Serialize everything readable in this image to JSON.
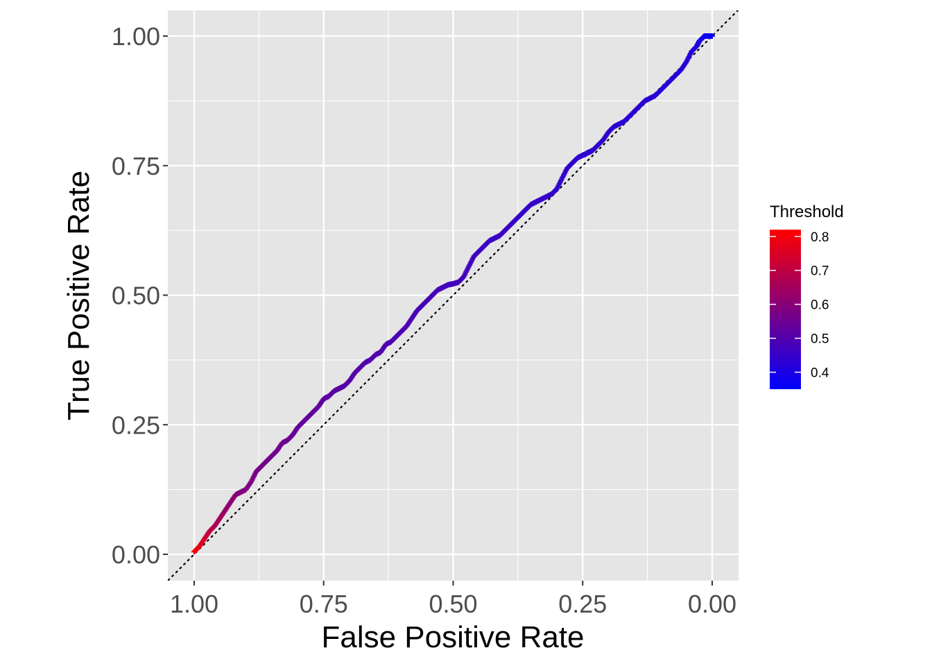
{
  "chart_data": {
    "type": "line",
    "title": "",
    "xlabel": "False Positive Rate",
    "ylabel": "True Positive Rate",
    "x_reversed": true,
    "xlim": [
      1.0,
      0.0
    ],
    "ylim": [
      0.0,
      1.0
    ],
    "x_ticks": [
      "1.00",
      "0.75",
      "0.50",
      "0.25",
      "0.00"
    ],
    "y_ticks": [
      "0.00",
      "0.25",
      "0.50",
      "0.75",
      "1.00"
    ],
    "grid": true,
    "reference_line": "diagonal dotted",
    "legend": {
      "title": "Threshold",
      "placement": "right",
      "labels": [
        "0.8",
        "0.7",
        "0.6",
        "0.5",
        "0.4"
      ],
      "range": [
        0.35,
        0.82
      ],
      "low_color": "#0000ff",
      "high_color": "#ff0000"
    },
    "series": [
      {
        "x": [
          1.0,
          0.99,
          0.98,
          0.97,
          0.96,
          0.95,
          0.94,
          0.93,
          0.92,
          0.91,
          0.9,
          0.89,
          0.88,
          0.87,
          0.86,
          0.85,
          0.84,
          0.83,
          0.82,
          0.81,
          0.8,
          0.79,
          0.78,
          0.77,
          0.76,
          0.75,
          0.74,
          0.73,
          0.72,
          0.71,
          0.7,
          0.69,
          0.68,
          0.67,
          0.66,
          0.65,
          0.64,
          0.63,
          0.62,
          0.61,
          0.6,
          0.59,
          0.58,
          0.57,
          0.56,
          0.55,
          0.54,
          0.53,
          0.52,
          0.51,
          0.5,
          0.49,
          0.48,
          0.47,
          0.46,
          0.45,
          0.44,
          0.43,
          0.42,
          0.41,
          0.4,
          0.39,
          0.38,
          0.37,
          0.36,
          0.35,
          0.34,
          0.33,
          0.32,
          0.31,
          0.3,
          0.29,
          0.28,
          0.27,
          0.26,
          0.25,
          0.245,
          0.24,
          0.235,
          0.23,
          0.22,
          0.21,
          0.2,
          0.19,
          0.18,
          0.17,
          0.16,
          0.15,
          0.14,
          0.13,
          0.12,
          0.11,
          0.1,
          0.09,
          0.08,
          0.07,
          0.06,
          0.05,
          0.04,
          0.03,
          0.025,
          0.02,
          0.015,
          0.01,
          0.005,
          0.0
        ],
        "y": [
          0.005,
          0.015,
          0.03,
          0.045,
          0.055,
          0.07,
          0.085,
          0.1,
          0.115,
          0.12,
          0.125,
          0.14,
          0.16,
          0.17,
          0.18,
          0.19,
          0.2,
          0.215,
          0.22,
          0.23,
          0.245,
          0.255,
          0.265,
          0.275,
          0.285,
          0.3,
          0.305,
          0.315,
          0.32,
          0.325,
          0.335,
          0.35,
          0.36,
          0.37,
          0.375,
          0.385,
          0.39,
          0.405,
          0.41,
          0.42,
          0.43,
          0.44,
          0.455,
          0.47,
          0.48,
          0.49,
          0.5,
          0.51,
          0.515,
          0.52,
          0.522,
          0.525,
          0.535,
          0.555,
          0.575,
          0.585,
          0.595,
          0.605,
          0.61,
          0.615,
          0.625,
          0.635,
          0.645,
          0.655,
          0.665,
          0.675,
          0.68,
          0.685,
          0.69,
          0.695,
          0.705,
          0.725,
          0.745,
          0.755,
          0.765,
          0.77,
          0.772,
          0.775,
          0.777,
          0.78,
          0.79,
          0.8,
          0.815,
          0.825,
          0.83,
          0.835,
          0.845,
          0.855,
          0.865,
          0.875,
          0.88,
          0.885,
          0.895,
          0.905,
          0.915,
          0.925,
          0.935,
          0.95,
          0.97,
          0.98,
          0.99,
          0.995,
          1.0,
          1.0,
          1.0,
          1.0
        ],
        "threshold": [
          0.82,
          0.78,
          0.74,
          0.7,
          0.67,
          0.65,
          0.63,
          0.61,
          0.6,
          0.59,
          0.58,
          0.58,
          0.57,
          0.57,
          0.56,
          0.56,
          0.55,
          0.55,
          0.55,
          0.54,
          0.54,
          0.54,
          0.53,
          0.53,
          0.53,
          0.52,
          0.52,
          0.52,
          0.52,
          0.51,
          0.51,
          0.51,
          0.51,
          0.5,
          0.5,
          0.5,
          0.5,
          0.5,
          0.49,
          0.49,
          0.49,
          0.49,
          0.49,
          0.48,
          0.48,
          0.48,
          0.48,
          0.48,
          0.48,
          0.47,
          0.47,
          0.47,
          0.47,
          0.47,
          0.47,
          0.46,
          0.46,
          0.46,
          0.46,
          0.46,
          0.46,
          0.46,
          0.45,
          0.45,
          0.45,
          0.45,
          0.45,
          0.45,
          0.45,
          0.45,
          0.44,
          0.44,
          0.44,
          0.44,
          0.44,
          0.44,
          0.44,
          0.44,
          0.44,
          0.44,
          0.44,
          0.44,
          0.44,
          0.43,
          0.43,
          0.43,
          0.43,
          0.43,
          0.43,
          0.43,
          0.43,
          0.43,
          0.42,
          0.42,
          0.42,
          0.42,
          0.42,
          0.42,
          0.41,
          0.41,
          0.4,
          0.4,
          0.39,
          0.38,
          0.37,
          0.36
        ]
      }
    ]
  }
}
